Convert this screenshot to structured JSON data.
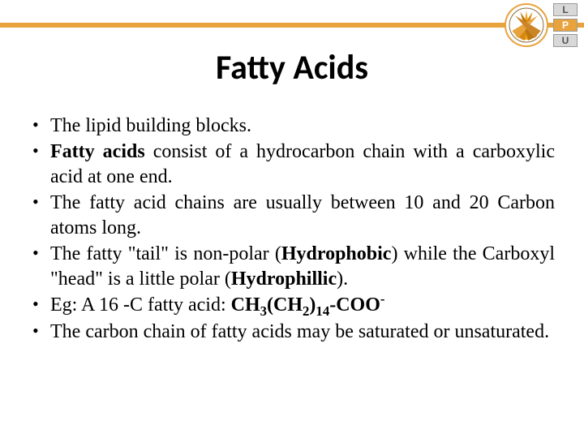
{
  "header": {
    "bar_color": "#e8a33d",
    "logo": {
      "outer_ring_color": "#e8a33d",
      "inner_colors": [
        "#f5a623",
        "#d68910",
        "#b9770e"
      ],
      "side_letters": [
        "L",
        "P",
        "U"
      ],
      "side_colors": [
        "#d8d8d8",
        "#e8a33d",
        "#d8d8d8"
      ]
    }
  },
  "title": "Fatty Acids",
  "title_fontsize": 42,
  "body_fontsize": 24,
  "bullets": [
    {
      "html": "The lipid building blocks."
    },
    {
      "html": "<span class=\"b\">Fatty acids</span> consist of a hydrocarbon chain with a carboxylic acid at one end."
    },
    {
      "html": " The fatty acid chains are usually between 10 and 20 Carbon atoms long."
    },
    {
      "html": "The fatty \"tail\" is non-polar (<span class=\"b\">Hydrophobic</span>) while the Carboxyl \"head\" is a little polar (<span class=\"b\">Hydrophillic</span>)."
    },
    {
      "html": "Eg: A 16 -C fatty acid:  <span class=\"b\">CH<sub>3</sub>(CH<sub>2</sub>)<sub>14</sub>-COO<sup>-</sup></span>"
    },
    {
      "html": "The carbon chain of fatty acids may be saturated or unsaturated."
    }
  ]
}
